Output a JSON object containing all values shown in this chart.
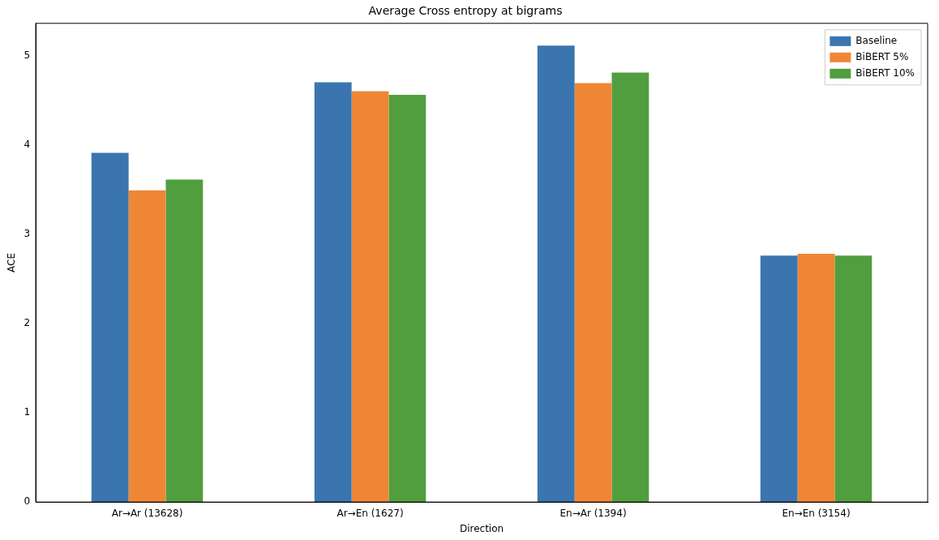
{
  "chart_data": {
    "type": "bar",
    "title": "Average Cross entropy at bigrams",
    "xlabel": "Direction",
    "ylabel": "ACE",
    "categories": [
      "Ar→Ar (13628)",
      "Ar→En (1627)",
      "En→Ar (1394)",
      "En→En (3154)"
    ],
    "series": [
      {
        "name": "Baseline",
        "color": "#3a75af",
        "values": [
          3.91,
          4.7,
          5.11,
          2.76
        ]
      },
      {
        "name": "BiBERT 5%",
        "color": "#ef8636",
        "values": [
          3.49,
          4.6,
          4.69,
          2.78
        ]
      },
      {
        "name": "BiBERT 10%",
        "color": "#519e3e",
        "values": [
          3.61,
          4.56,
          4.81,
          2.76
        ]
      }
    ],
    "ylim": [
      0,
      5.36
    ],
    "yticks": [
      0,
      1,
      2,
      3,
      4,
      5
    ],
    "grid": false,
    "legend": "top right"
  }
}
